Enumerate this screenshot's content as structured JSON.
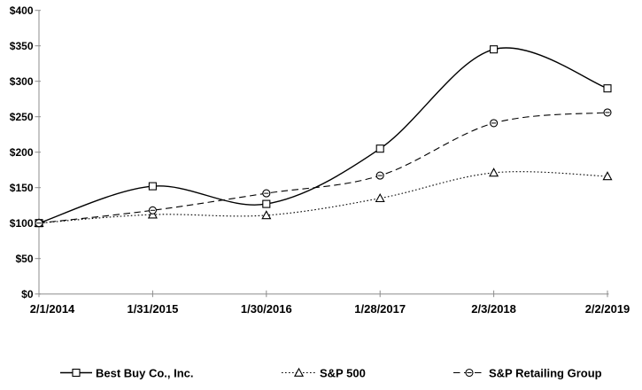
{
  "chart_data": {
    "type": "line",
    "title": "",
    "categories": [
      "2/1/2014",
      "1/31/2015",
      "1/30/2016",
      "1/28/2017",
      "2/3/2018",
      "2/2/2019"
    ],
    "series": [
      {
        "name": "Best Buy Co., Inc.",
        "marker": "square",
        "line_style": "solid",
        "values": [
          100,
          152,
          127,
          205,
          345,
          290
        ]
      },
      {
        "name": "S&P 500",
        "marker": "triangle",
        "line_style": "dotted",
        "values": [
          100,
          112,
          111,
          135,
          171,
          166
        ]
      },
      {
        "name": "S&P Retailing Group",
        "marker": "circle",
        "line_style": "dashed",
        "values": [
          100,
          118,
          142,
          167,
          241,
          256
        ]
      }
    ],
    "y_axis": {
      "min": 0,
      "max": 400,
      "step": 50,
      "tick_labels": [
        "$0",
        "$50",
        "$100",
        "$150",
        "$200",
        "$250",
        "$300",
        "$350",
        "$400"
      ]
    },
    "x_axis": {
      "tick_labels": [
        "2/1/2014",
        "1/31/2015",
        "1/30/2016",
        "1/28/2017",
        "2/3/2018",
        "2/2/2019"
      ]
    },
    "legend": {
      "position": "bottom",
      "entries": [
        "Best Buy Co., Inc.",
        "S&P 500",
        "S&P Retailing Group"
      ]
    },
    "colors": {
      "series": "#000000",
      "axis": "#8c8c8c",
      "text": "#000000",
      "background": "#ffffff",
      "marker_fill": "#ffffff"
    },
    "grid": false
  }
}
